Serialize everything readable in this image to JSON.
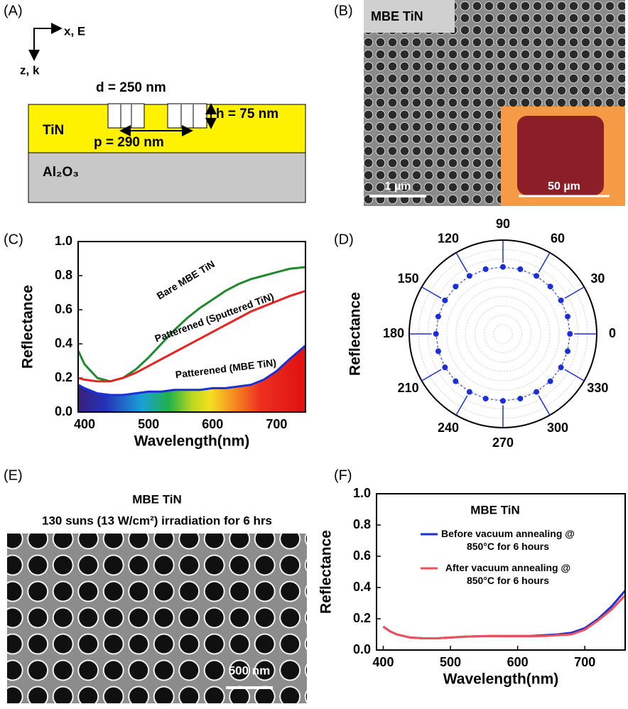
{
  "panel_labels": [
    "(A)",
    "(B)",
    "(C)",
    "(D)",
    "(E)",
    "(F)"
  ],
  "diagram": {
    "axes": [
      "x, E",
      "z, k"
    ],
    "hole_diameter": "d = 250 nm",
    "period": "p = 290 nm",
    "depth": "h = 75 nm",
    "film": "TiN",
    "substrate": "Al₂O₃"
  },
  "sem_top": {
    "label": "MBE TiN",
    "scale_bar": "1 µm",
    "inset_scale_bar": "50 µm"
  },
  "sem_bottom": {
    "title": "MBE TiN",
    "caption": "130 suns (13 W/cm²) irradiation for 6 hrs",
    "scale_bar": "500 nm"
  },
  "chart_data": [
    {
      "type": "line",
      "xlabel": "Wavelength(nm)",
      "ylabel": "Reflectance",
      "x": [
        390,
        400,
        420,
        440,
        460,
        480,
        500,
        520,
        540,
        560,
        580,
        600,
        620,
        640,
        660,
        680,
        700,
        720,
        745
      ],
      "series": [
        {
          "name": "Bare MBE TiN",
          "color": "#1e8a2e",
          "values": [
            0.36,
            0.28,
            0.2,
            0.18,
            0.2,
            0.25,
            0.32,
            0.4,
            0.48,
            0.55,
            0.61,
            0.66,
            0.71,
            0.75,
            0.78,
            0.8,
            0.82,
            0.84,
            0.85
          ]
        },
        {
          "name": "Patterened (Sputtered TiN)",
          "color": "#e8231f",
          "values": [
            0.2,
            0.19,
            0.18,
            0.18,
            0.2,
            0.23,
            0.27,
            0.31,
            0.35,
            0.39,
            0.43,
            0.47,
            0.51,
            0.55,
            0.59,
            0.62,
            0.65,
            0.68,
            0.71
          ]
        },
        {
          "name": "Patterened (MBE TiN)",
          "color": "#1a2fd6",
          "fill": "spectrum",
          "values": [
            0.16,
            0.14,
            0.11,
            0.1,
            0.1,
            0.11,
            0.12,
            0.12,
            0.13,
            0.13,
            0.13,
            0.14,
            0.14,
            0.15,
            0.16,
            0.19,
            0.24,
            0.31,
            0.39
          ]
        }
      ],
      "xlim": [
        390,
        745
      ],
      "xticks": [
        400,
        500,
        600,
        700
      ],
      "ylim": [
        0,
        1
      ],
      "yticks": [
        {
          "value": 0,
          "label": "0.0"
        },
        0.2,
        0.4,
        0.6,
        0.8,
        {
          "value": 1,
          "label": "1.0"
        }
      ]
    },
    {
      "type": "polar",
      "ylabel": "Reflectance",
      "angles": [
        0,
        15,
        30,
        45,
        60,
        75,
        90,
        105,
        120,
        135,
        150,
        165,
        180,
        195,
        210,
        225,
        240,
        255,
        270,
        285,
        300,
        315,
        330,
        345
      ],
      "values": [
        0.1,
        0.1,
        0.1,
        0.1,
        0.1,
        0.1,
        0.1,
        0.1,
        0.1,
        0.1,
        0.1,
        0.1,
        0.1,
        0.1,
        0.1,
        0.1,
        0.1,
        0.1,
        0.1,
        0.1,
        0.1,
        0.1,
        0.1,
        0.1
      ],
      "color": "#1a2fd6",
      "ylim": [
        0,
        0.14
      ],
      "angle_ticks": [
        0,
        30,
        60,
        90,
        120,
        150,
        180,
        210,
        240,
        270,
        300,
        330
      ]
    },
    {
      "type": "line",
      "title": "MBE TiN",
      "xlabel": "Wavelength(nm)",
      "ylabel": "Reflectance",
      "x": [
        400,
        410,
        420,
        440,
        460,
        480,
        500,
        520,
        540,
        560,
        580,
        600,
        620,
        640,
        660,
        680,
        700,
        720,
        740,
        760
      ],
      "series": [
        {
          "name": "Before vacuum annealing @ 850°C for 6 hours",
          "color": "#1a2fd6",
          "values": [
            0.15,
            0.12,
            0.1,
            0.08,
            0.075,
            0.075,
            0.08,
            0.085,
            0.088,
            0.09,
            0.09,
            0.09,
            0.09,
            0.095,
            0.1,
            0.11,
            0.14,
            0.2,
            0.28,
            0.38
          ]
        },
        {
          "name": "After vacuum annealing @ 850°C for 6 hours",
          "color": "#f0505a",
          "values": [
            0.15,
            0.12,
            0.1,
            0.08,
            0.075,
            0.075,
            0.08,
            0.085,
            0.088,
            0.09,
            0.088,
            0.088,
            0.088,
            0.09,
            0.095,
            0.1,
            0.13,
            0.19,
            0.26,
            0.35
          ]
        }
      ],
      "xlim": [
        390,
        760
      ],
      "xticks": [
        400,
        500,
        600,
        700
      ],
      "ylim": [
        0,
        1
      ],
      "yticks": [
        {
          "value": 0,
          "label": "0.0"
        },
        0.2,
        0.4,
        0.6,
        0.8,
        {
          "value": 1,
          "label": "1.0"
        }
      ]
    }
  ]
}
